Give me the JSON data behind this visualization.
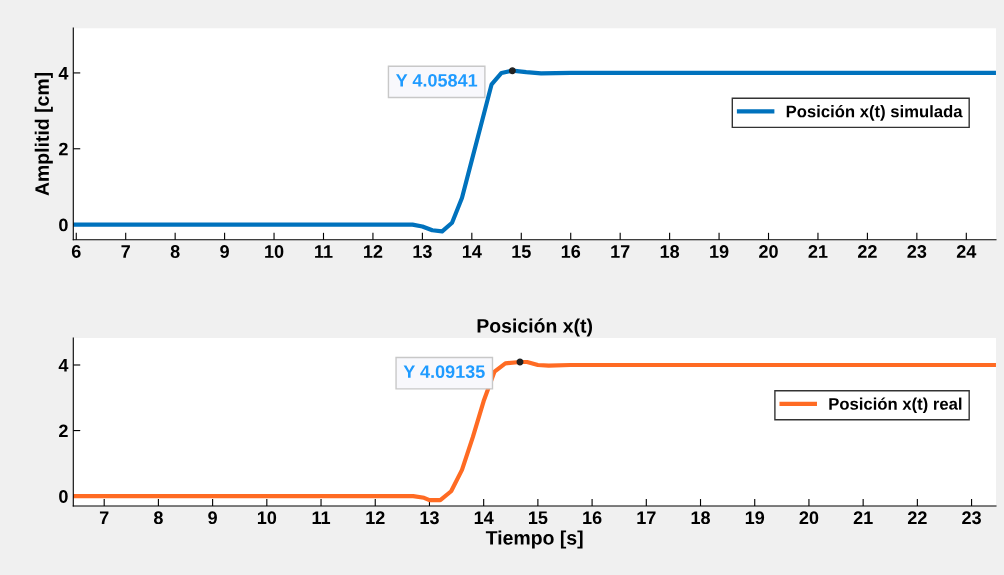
{
  "chart_data": [
    {
      "type": "line",
      "ylabel": "Amplitid [cm]",
      "xlim": [
        5.94,
        24.6
      ],
      "ylim": [
        -0.4,
        5.18
      ],
      "xticks": [
        6,
        7,
        8,
        9,
        10,
        11,
        12,
        13,
        14,
        15,
        16,
        17,
        18,
        19,
        20,
        21,
        22,
        23,
        24
      ],
      "yticks": [
        0,
        2,
        4
      ],
      "grid": false,
      "legend": "right",
      "series": [
        {
          "name": "Posición x(t) simulada",
          "color": "#0072bd",
          "x": [
            5.94,
            12.6,
            12.8,
            13.0,
            13.2,
            13.4,
            13.6,
            13.8,
            14.0,
            14.2,
            14.4,
            14.6,
            14.82,
            15.1,
            15.4,
            16.0,
            24.6
          ],
          "values": [
            0,
            0,
            0,
            -0.05,
            -0.15,
            -0.18,
            0.05,
            0.7,
            1.7,
            2.7,
            3.7,
            4.0,
            4.06,
            4.02,
            3.99,
            4.0,
            4.0
          ]
        }
      ],
      "annotations": [
        {
          "text": "Y 4.05841",
          "x": 14.82,
          "y": 4.05841
        }
      ]
    },
    {
      "type": "line",
      "title": "Posición x(t)",
      "xlabel": "Tiempo [s]",
      "xlim": [
        6.43,
        23.45
      ],
      "ylim": [
        -0.3,
        4.82
      ],
      "xticks": [
        7,
        8,
        9,
        10,
        11,
        12,
        13,
        14,
        15,
        16,
        17,
        18,
        19,
        20,
        21,
        22,
        23
      ],
      "yticks": [
        0,
        2,
        4
      ],
      "grid": false,
      "legend": "right",
      "series": [
        {
          "name": "Posición x(t) real",
          "color": "#ff6b23",
          "x": [
            6.43,
            12.4,
            12.7,
            12.9,
            13.0,
            13.2,
            13.4,
            13.6,
            13.8,
            14.0,
            14.2,
            14.4,
            14.67,
            14.8,
            15.0,
            15.2,
            15.6,
            23.45
          ],
          "values": [
            0,
            0,
            0,
            -0.05,
            -0.12,
            -0.12,
            0.15,
            0.8,
            1.8,
            2.9,
            3.8,
            4.05,
            4.09,
            4.09,
            4.0,
            3.98,
            4.0,
            4.0
          ]
        }
      ],
      "annotations": [
        {
          "text": "Y 4.09135",
          "x": 14.67,
          "y": 4.09135
        }
      ]
    }
  ]
}
